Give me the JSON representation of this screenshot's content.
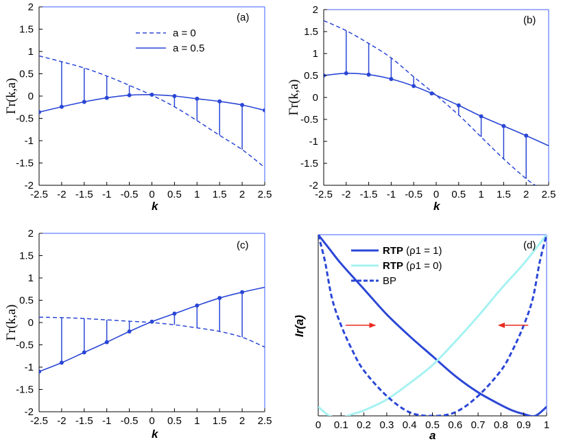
{
  "colors": {
    "blue": "#2a46d6",
    "cyan": "#a6f2f2",
    "red": "#ea2b1f",
    "axis": "#000000",
    "frame_top_right": "#3b5bff"
  },
  "chart_data": [
    {
      "id": "a",
      "type": "line",
      "panel_label": "(a)",
      "xlabel": "k",
      "ylabel": "Γr(k,a)",
      "xlim": [
        -2.5,
        2.5
      ],
      "ylim": [
        -2,
        2
      ],
      "xticks": [
        -2.5,
        -2,
        -1.5,
        -1,
        -0.5,
        0,
        0.5,
        1,
        1.5,
        2,
        2.5
      ],
      "xtick_labels": [
        "-2.5",
        "-2",
        "-1.5",
        "-1",
        "-0.5",
        "0",
        "0.5",
        "1",
        "1.5",
        "2",
        "2.5"
      ],
      "yticks": [
        -2,
        -1.5,
        -1,
        -0.5,
        0,
        0.5,
        1,
        1.5,
        2
      ],
      "ytick_labels": [
        "-2",
        "-1.5",
        "-1",
        "-0.5",
        "0",
        "0.5",
        "1",
        "1.5",
        "2"
      ],
      "legend": [
        {
          "label": "a = 0",
          "style": "dashed"
        },
        {
          "label": "a = 0.5",
          "style": "solid"
        }
      ],
      "legend_position": "top-center",
      "series": [
        {
          "name": "a = 0",
          "style": "dashed",
          "x": [
            -2.5,
            -2,
            -1.5,
            -1,
            -0.5,
            0,
            0.5,
            1,
            1.5,
            2,
            2.5
          ],
          "y": [
            0.9,
            0.77,
            0.63,
            0.45,
            0.24,
            0.02,
            -0.24,
            -0.55,
            -0.88,
            -1.2,
            -1.6
          ]
        },
        {
          "name": "a = 0.5",
          "style": "solid",
          "x": [
            -2.5,
            -2,
            -1.5,
            -1,
            -0.5,
            0,
            0.5,
            1,
            1.5,
            2,
            2.5
          ],
          "y": [
            -0.36,
            -0.24,
            -0.13,
            -0.04,
            0.02,
            0.03,
            0.0,
            -0.06,
            -0.12,
            -0.2,
            -0.32
          ]
        }
      ],
      "markers_x": [
        -2.5,
        -2,
        -1.5,
        -1,
        -0.5,
        0,
        0.5,
        1,
        1.5,
        2,
        2.5
      ],
      "stems_x": [
        -2,
        -1.5,
        -1,
        -0.5,
        0.5,
        1,
        1.5,
        2
      ]
    },
    {
      "id": "b",
      "type": "line",
      "panel_label": "(b)",
      "xlabel": "k",
      "ylabel": "Γr(k,a)",
      "xlim": [
        -2.5,
        2.5
      ],
      "ylim": [
        -2,
        2
      ],
      "xticks": [
        -2.5,
        -2,
        -1.5,
        -1,
        -0.5,
        0,
        0.5,
        1,
        1.5,
        2,
        2.5
      ],
      "xtick_labels": [
        "-2.5",
        "-2",
        "-1.5",
        "-1",
        "-0.5",
        "0",
        "0.5",
        "1",
        "1.5",
        "2",
        "2.5"
      ],
      "yticks": [
        -2,
        -1.5,
        -1,
        -0.5,
        0,
        0.5,
        1,
        1.5,
        2
      ],
      "ytick_labels": [
        "-2",
        "-1.5",
        "-1",
        "-0.5",
        "0",
        "0.5",
        "1",
        "1.5",
        "2"
      ],
      "series": [
        {
          "name": "a = 0",
          "style": "dashed",
          "x": [
            -2.5,
            -2,
            -1.5,
            -1,
            -0.5,
            0,
            0.5,
            1,
            1.5,
            2,
            2.2
          ],
          "y": [
            1.75,
            1.52,
            1.23,
            0.9,
            0.47,
            0.05,
            -0.4,
            -0.9,
            -1.4,
            -1.85,
            -2.0
          ]
        },
        {
          "name": "a = 0.5",
          "style": "solid",
          "x": [
            -2.5,
            -2,
            -1.5,
            -1,
            -0.5,
            0,
            0.5,
            1,
            1.5,
            2,
            2.5
          ],
          "y": [
            0.5,
            0.55,
            0.52,
            0.42,
            0.26,
            0.05,
            -0.18,
            -0.43,
            -0.65,
            -0.87,
            -1.1
          ]
        }
      ],
      "markers_x": [
        -2.5,
        -2,
        -1.5,
        -1,
        -0.5,
        -0.1,
        0.5,
        1,
        1.5,
        2
      ],
      "stems_x": [
        -2,
        -1.5,
        -1,
        -0.5,
        0.5,
        1,
        1.5,
        2
      ]
    },
    {
      "id": "c",
      "type": "line",
      "panel_label": "(c)",
      "xlabel": "k",
      "ylabel": "Γr(k,a)",
      "xlim": [
        -2.5,
        2.5
      ],
      "ylim": [
        -2,
        2
      ],
      "xticks": [
        -2.5,
        -2,
        -1.5,
        -1,
        -0.5,
        0,
        0.5,
        1,
        1.5,
        2,
        2.5
      ],
      "xtick_labels": [
        "-2.5",
        "-2",
        "-1.5",
        "-1",
        "-0.5",
        "0",
        "0.5",
        "1",
        "1.5",
        "2",
        "2.5"
      ],
      "yticks": [
        -2,
        -1.5,
        -1,
        -0.5,
        0,
        0.5,
        1,
        1.5,
        2
      ],
      "ytick_labels": [
        "-2",
        "-1.5",
        "-1",
        "-0.5",
        "0",
        "0.5",
        "1",
        "1.5",
        "2"
      ],
      "series": [
        {
          "name": "a = 0",
          "style": "dashed",
          "x": [
            -2.5,
            -2,
            -1.5,
            -1,
            -0.5,
            0,
            0.5,
            1,
            1.5,
            2,
            2.5
          ],
          "y": [
            0.12,
            0.11,
            0.09,
            0.06,
            0.03,
            0.0,
            -0.05,
            -0.12,
            -0.2,
            -0.33,
            -0.55
          ]
        },
        {
          "name": "a = 0.5",
          "style": "solid",
          "x": [
            -2.5,
            -2,
            -1.5,
            -1,
            -0.5,
            0,
            0.5,
            1,
            1.5,
            2,
            2.5
          ],
          "y": [
            -1.1,
            -0.9,
            -0.67,
            -0.44,
            -0.2,
            0.02,
            0.2,
            0.38,
            0.55,
            0.68,
            0.79
          ]
        }
      ],
      "markers_x": [
        -2.5,
        -2,
        -1.5,
        -1,
        -0.5,
        0,
        0.5,
        1,
        1.5,
        2
      ],
      "stems_x": [
        -2,
        -1.5,
        -1,
        -0.5,
        0.5,
        1,
        1.5,
        2
      ]
    },
    {
      "id": "d",
      "type": "line",
      "panel_label": "(d)",
      "xlabel": "a",
      "ylabel": "Ir(a)",
      "xlim": [
        0,
        1
      ],
      "ylim": [
        0,
        1
      ],
      "xticks": [
        0,
        0.1,
        0.2,
        0.3,
        0.4,
        0.5,
        0.6,
        0.7,
        0.8,
        0.9,
        1
      ],
      "xtick_labels": [
        "0",
        "0.1",
        "0.2",
        "0.3",
        "0.4",
        "0.5",
        "0.6",
        "0.7",
        "0.8",
        "0.9",
        "1"
      ],
      "legend": [
        {
          "label": "RTP",
          "suffix": "(ρ1 = 1)",
          "style": "solid",
          "color_key": "blue"
        },
        {
          "label": "RTP",
          "suffix": "(ρ1 = 0)",
          "style": "solid",
          "color_key": "cyan"
        },
        {
          "label": "BP",
          "suffix": "",
          "style": "dashed",
          "color_key": "blue"
        }
      ],
      "legend_position": "top-center",
      "series": [
        {
          "name": "RTP (ρ1 = 1)",
          "style": "solid",
          "color_key": "blue",
          "x": [
            0,
            0.05,
            0.1,
            0.2,
            0.3,
            0.4,
            0.5,
            0.6,
            0.7,
            0.8,
            0.85,
            0.9,
            0.95,
            1
          ],
          "y": [
            1.0,
            0.92,
            0.84,
            0.7,
            0.56,
            0.44,
            0.33,
            0.22,
            0.13,
            0.06,
            0.03,
            0.01,
            0.0,
            0.05
          ]
        },
        {
          "name": "RTP (ρ1 = 0)",
          "style": "solid",
          "color_key": "cyan",
          "x": [
            0,
            0.05,
            0.1,
            0.15,
            0.2,
            0.3,
            0.4,
            0.5,
            0.6,
            0.7,
            0.8,
            0.9,
            1
          ],
          "y": [
            0.05,
            0.0,
            -0.01,
            0.01,
            0.03,
            0.09,
            0.18,
            0.28,
            0.41,
            0.55,
            0.7,
            0.84,
            1.0
          ]
        },
        {
          "name": "BP",
          "style": "dashed",
          "color_key": "blue",
          "x": [
            0,
            0.03,
            0.06,
            0.1,
            0.15,
            0.2,
            0.3,
            0.4,
            0.5,
            0.6,
            0.7,
            0.8,
            0.85,
            0.9,
            0.94,
            0.97,
            1
          ],
          "y": [
            1.0,
            0.85,
            0.65,
            0.5,
            0.36,
            0.25,
            0.11,
            0.02,
            0.0,
            0.02,
            0.11,
            0.25,
            0.36,
            0.5,
            0.65,
            0.85,
            1.0
          ]
        }
      ],
      "arrows": [
        {
          "from": [
            0.12,
            0.5
          ],
          "to": [
            0.25,
            0.5
          ]
        },
        {
          "from": [
            0.92,
            0.5
          ],
          "to": [
            0.79,
            0.5
          ]
        }
      ]
    }
  ]
}
